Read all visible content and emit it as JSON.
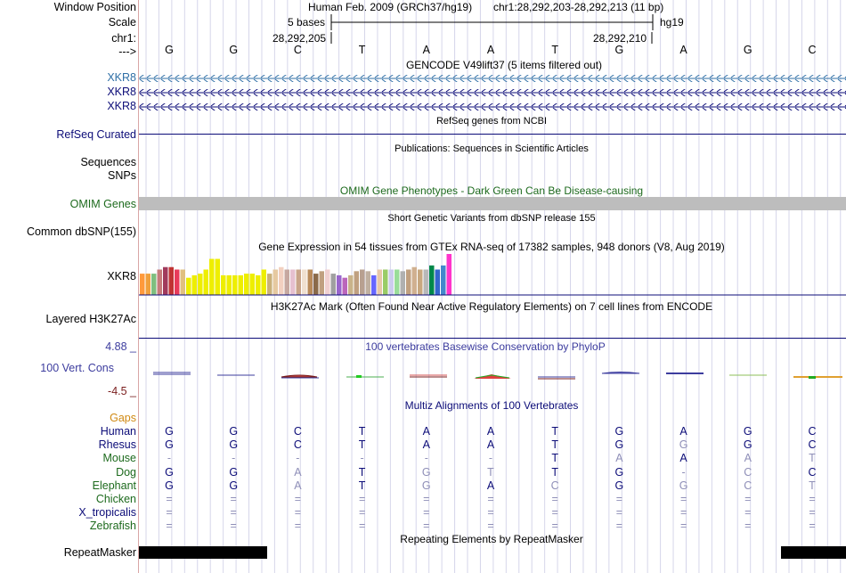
{
  "colors": {
    "xkr8_blue": "#2f6fa6",
    "gene_navy": "#0c0c78",
    "omim_green": "#1d6a1d",
    "omim_gray": "#bdbdbd",
    "cons_blue": "#3c3c9e",
    "cons_red": "#7a1d1d",
    "gaps_orange": "#d08a14",
    "human_navy": "#0c0c78",
    "mammal_green": "#1d6a1d",
    "grid_line": "#d6d6ea",
    "grid_tick": "#a8a8c8",
    "gtex_pink": "#ff33cc"
  },
  "header": {
    "window_position_label": "Window Position",
    "scale_label": "Scale",
    "chr_label": "chr1:",
    "strand_label": "--->",
    "assembly_info": "Human Feb. 2009 (GRCh37/hg19)",
    "coordinates": "chr1:28,292,203-28,292,213 (11 bp)",
    "scale_value": "5 bases",
    "assembly": "hg19",
    "coord_left": "28,292,205",
    "coord_right": "28,292,210"
  },
  "reference_bases": [
    "G",
    "G",
    "C",
    "T",
    "A",
    "A",
    "T",
    "G",
    "A",
    "G",
    "C"
  ],
  "tracks": {
    "gencode": {
      "title": "GENCODE V49lift37 (5 items filtered out)",
      "genes": [
        "XKR8",
        "XKR8",
        "XKR8"
      ]
    },
    "refseq": {
      "title": "RefSeq genes from NCBI",
      "label": "RefSeq Curated"
    },
    "publications": {
      "title": "Publications: Sequences in Scientific Articles",
      "labels": [
        "Sequences",
        "SNPs"
      ]
    },
    "omim": {
      "title": "OMIM Gene Phenotypes - Dark Green Can Be Disease-causing",
      "label": "OMIM Genes"
    },
    "dbsnp": {
      "title": "Short Genetic Variants from dbSNP release 155",
      "label": "Common dbSNP(155)"
    },
    "gtex": {
      "title": "Gene Expression in 54 tissues from GTEx RNA-seq of 17382 samples, 948 donors (V8, Aug 2019)",
      "label": "XKR8",
      "bars": [
        {
          "h": 0.52,
          "c": "#ff9a3c"
        },
        {
          "h": 0.52,
          "c": "#f0a03c"
        },
        {
          "h": 0.52,
          "c": "#7fbf7f"
        },
        {
          "h": 0.62,
          "c": "#c77b7b"
        },
        {
          "h": 0.68,
          "c": "#a13a5c"
        },
        {
          "h": 0.68,
          "c": "#c03333"
        },
        {
          "h": 0.62,
          "c": "#e83b5a"
        },
        {
          "h": 0.62,
          "c": "#e0c080"
        },
        {
          "h": 0.42,
          "c": "#eeee00"
        },
        {
          "h": 0.48,
          "c": "#eeee00"
        },
        {
          "h": 0.52,
          "c": "#eeee00"
        },
        {
          "h": 0.62,
          "c": "#eeee00"
        },
        {
          "h": 0.88,
          "c": "#eeee00"
        },
        {
          "h": 0.88,
          "c": "#eeee00"
        },
        {
          "h": 0.48,
          "c": "#eeee00"
        },
        {
          "h": 0.48,
          "c": "#eeee00"
        },
        {
          "h": 0.48,
          "c": "#eeee00"
        },
        {
          "h": 0.48,
          "c": "#eeee00"
        },
        {
          "h": 0.52,
          "c": "#eeee00"
        },
        {
          "h": 0.52,
          "c": "#eeee00"
        },
        {
          "h": 0.48,
          "c": "#eeee00"
        },
        {
          "h": 0.62,
          "c": "#eeee00"
        },
        {
          "h": 0.52,
          "c": "#c9b07a"
        },
        {
          "h": 0.62,
          "c": "#e6c9a0"
        },
        {
          "h": 0.68,
          "c": "#f2d0c0"
        },
        {
          "h": 0.62,
          "c": "#c6a8a0"
        },
        {
          "h": 0.62,
          "c": "#e6c0d0"
        },
        {
          "h": 0.62,
          "c": "#c9a48a"
        },
        {
          "h": 0.62,
          "c": "#f0e0d0"
        },
        {
          "h": 0.62,
          "c": "#b88a5a"
        },
        {
          "h": 0.52,
          "c": "#8a6a4a"
        },
        {
          "h": 0.58,
          "c": "#c0a080"
        },
        {
          "h": 0.62,
          "c": "#f0d0d0"
        },
        {
          "h": 0.52,
          "c": "#a0a0a0"
        },
        {
          "h": 0.48,
          "c": "#9966cc"
        },
        {
          "h": 0.42,
          "c": "#bb66bb"
        },
        {
          "h": 0.48,
          "c": "#c9b38a"
        },
        {
          "h": 0.58,
          "c": "#c0a080"
        },
        {
          "h": 0.62,
          "c": "#b8a090"
        },
        {
          "h": 0.58,
          "c": "#c0b0a0"
        },
        {
          "h": 0.48,
          "c": "#6666ff"
        },
        {
          "h": 0.62,
          "c": "#e8c8a8"
        },
        {
          "h": 0.62,
          "c": "#99cc66"
        },
        {
          "h": 0.62,
          "c": "#ccccee"
        },
        {
          "h": 0.62,
          "c": "#99dd99"
        },
        {
          "h": 0.58,
          "c": "#b0b0b0"
        },
        {
          "h": 0.62,
          "c": "#c0a080"
        },
        {
          "h": 0.68,
          "c": "#d0b090"
        },
        {
          "h": 0.62,
          "c": "#c8a880"
        },
        {
          "h": 0.62,
          "c": "#b8b8b8"
        },
        {
          "h": 0.72,
          "c": "#00884a"
        },
        {
          "h": 0.62,
          "c": "#3366cc"
        },
        {
          "h": 0.72,
          "c": "#4488cc"
        },
        {
          "h": 1.0,
          "c": "#ff33cc"
        }
      ]
    },
    "h3k27ac": {
      "title": "H3K27Ac Mark (Often Found Near Active Regulatory Elements) on 7 cell lines from ENCODE",
      "label": "Layered H3K27Ac"
    },
    "phylop": {
      "title": "100 vertebrates Basewise Conservation by PhyloP",
      "label": "100 Vert. Cons",
      "max": "4.88 _",
      "min": "-4.5 _"
    },
    "multiz": {
      "title": "Multiz Alignments of 100 Vertebrates",
      "gaps_label": "Gaps",
      "species": [
        {
          "name": "Human",
          "color": "#0c0c78",
          "bases": [
            "G",
            "G",
            "C",
            "T",
            "A",
            "A",
            "T",
            "G",
            "A",
            "G",
            "C"
          ],
          "faded": [
            false,
            false,
            false,
            false,
            false,
            false,
            false,
            false,
            false,
            false,
            false
          ]
        },
        {
          "name": "Rhesus",
          "color": "#0c0c78",
          "bases": [
            "G",
            "G",
            "C",
            "T",
            "A",
            "A",
            "T",
            "G",
            "G",
            "G",
            "C"
          ],
          "faded": [
            false,
            false,
            false,
            false,
            false,
            false,
            false,
            false,
            true,
            false,
            false
          ]
        },
        {
          "name": "Mouse",
          "color": "#1d6a1d",
          "bases": [
            "-",
            "-",
            "-",
            "-",
            "-",
            "-",
            "T",
            "A",
            "A",
            "A",
            "T"
          ],
          "faded": [
            true,
            true,
            true,
            true,
            true,
            true,
            false,
            true,
            false,
            true,
            true
          ]
        },
        {
          "name": "Dog",
          "color": "#1d6a1d",
          "bases": [
            "G",
            "G",
            "A",
            "T",
            "G",
            "T",
            "T",
            "G",
            "-",
            "C",
            "C"
          ],
          "faded": [
            false,
            false,
            true,
            false,
            true,
            true,
            false,
            false,
            true,
            true,
            false
          ]
        },
        {
          "name": "Elephant",
          "color": "#1d6a1d",
          "bases": [
            "G",
            "G",
            "A",
            "T",
            "G",
            "A",
            "C",
            "G",
            "G",
            "C",
            "T"
          ],
          "faded": [
            false,
            false,
            true,
            false,
            true,
            false,
            true,
            false,
            true,
            true,
            true
          ]
        },
        {
          "name": "Chicken",
          "color": "#1d6a1d",
          "bases": [
            "=",
            "=",
            "=",
            "=",
            "=",
            "=",
            "=",
            "=",
            "=",
            "=",
            "="
          ],
          "faded": [
            true,
            true,
            true,
            true,
            true,
            true,
            true,
            true,
            true,
            true,
            true
          ]
        },
        {
          "name": "X_tropicalis",
          "color": "#0c0c78",
          "bases": [
            "=",
            "=",
            "=",
            "=",
            "=",
            "=",
            "=",
            "=",
            "=",
            "=",
            "="
          ],
          "faded": [
            true,
            true,
            true,
            true,
            true,
            true,
            true,
            true,
            true,
            true,
            true
          ]
        },
        {
          "name": "Zebrafish",
          "color": "#1d6a1d",
          "bases": [
            "=",
            "=",
            "=",
            "=",
            "=",
            "=",
            "=",
            "=",
            "=",
            "=",
            "="
          ],
          "faded": [
            true,
            true,
            true,
            true,
            true,
            true,
            true,
            true,
            true,
            true,
            true
          ]
        }
      ]
    },
    "repeatmasker": {
      "title": "Repeating Elements by RepeatMasker",
      "label": "RepeatMasker"
    }
  }
}
